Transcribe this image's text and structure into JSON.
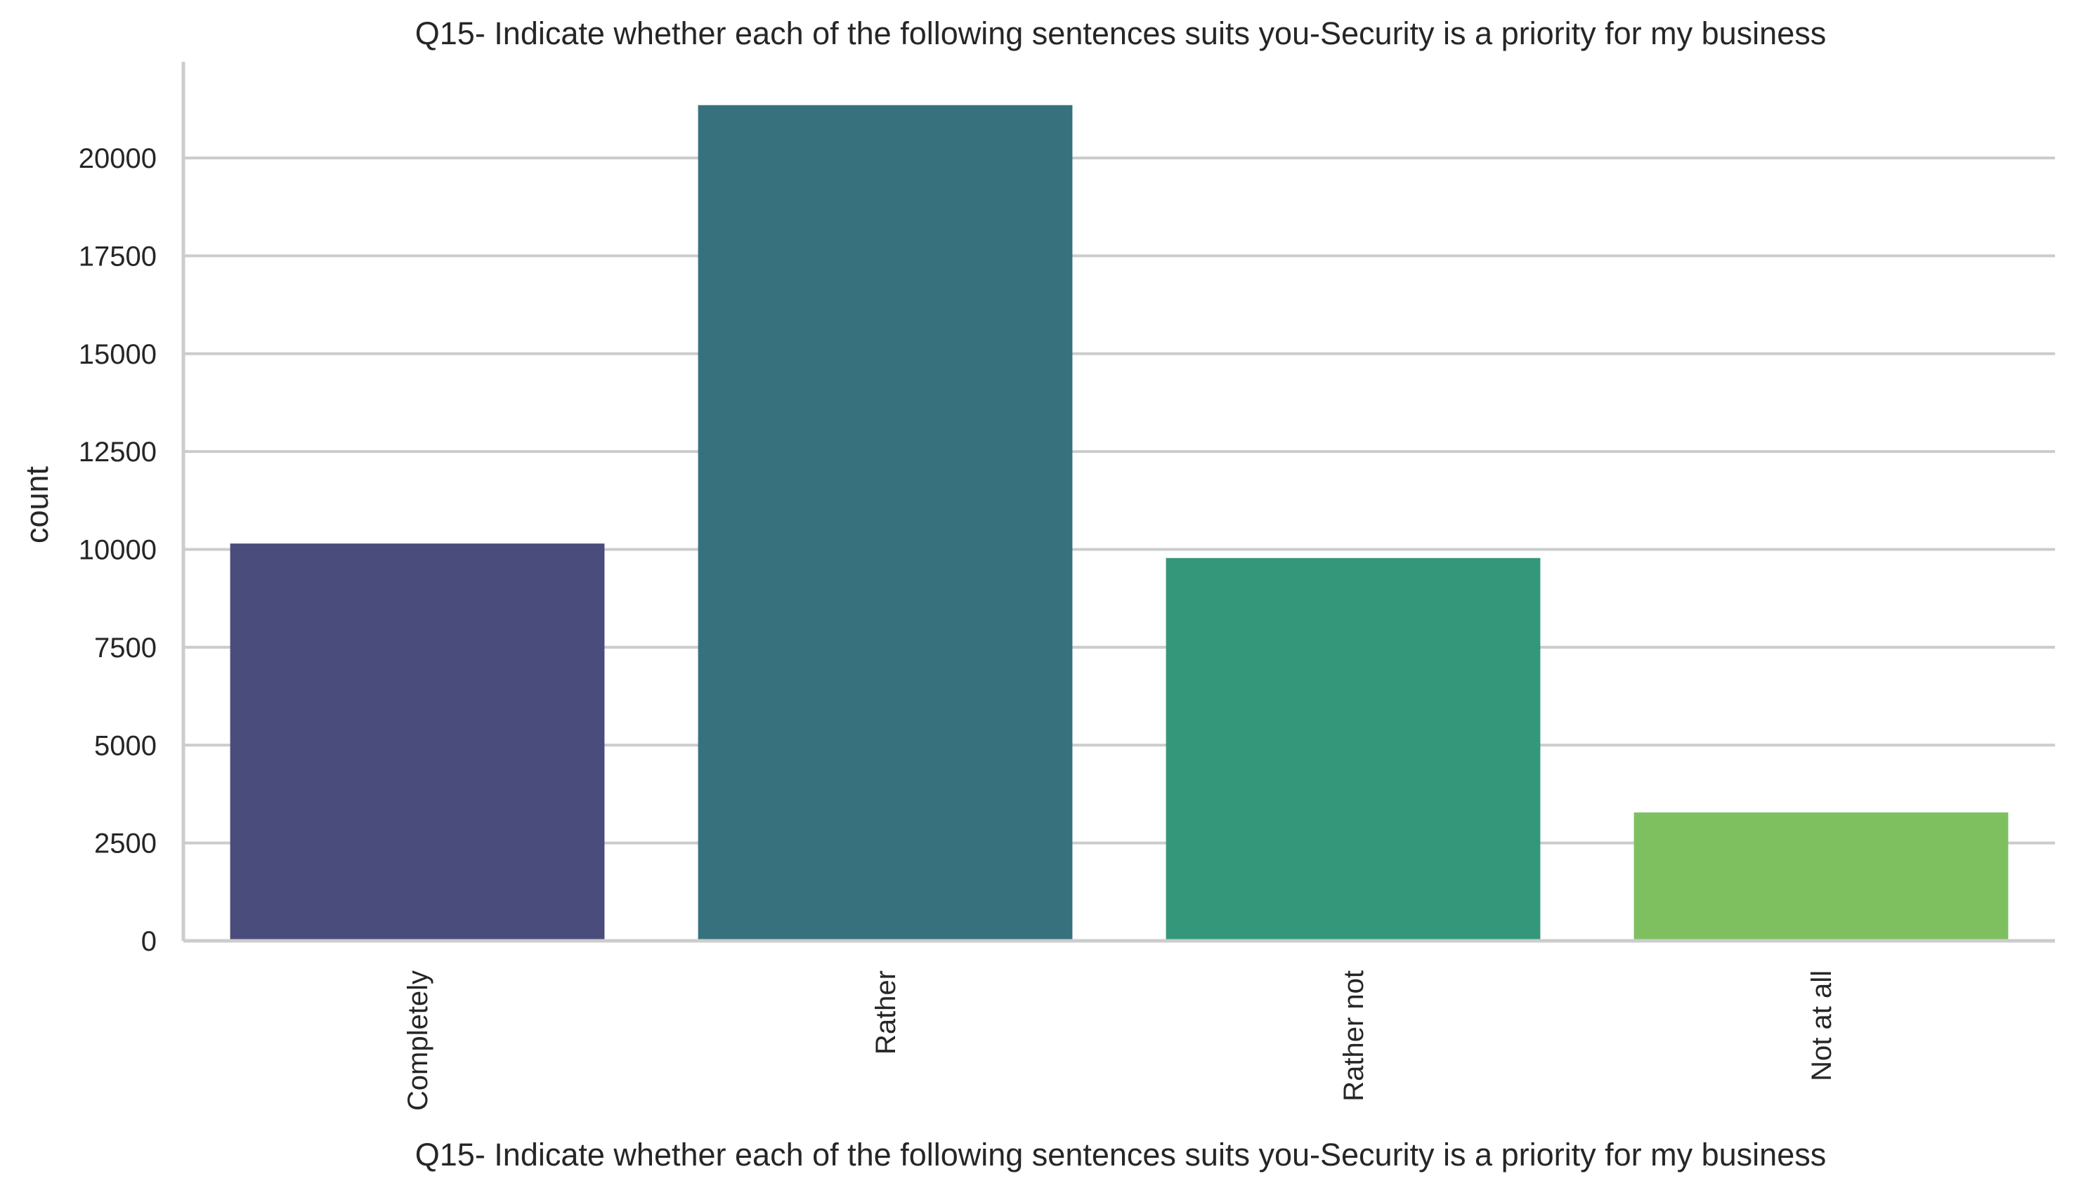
{
  "chart_data": {
    "type": "bar",
    "title": "Q15- Indicate whether each of the following sentences suits you-Security is a priority for my business",
    "xlabel": "Q15- Indicate whether each of the following sentences suits you-Security is a priority for my business",
    "ylabel": "count",
    "categories": [
      "Completely",
      "Rather",
      "Rather not",
      "Not at all"
    ],
    "values": [
      10150,
      21350,
      9780,
      3280
    ],
    "colors": [
      "#4a4c7c",
      "#37717e",
      "#35977a",
      "#7ec060"
    ],
    "ylim": [
      0,
      22000
    ],
    "yticks": [
      0,
      2500,
      5000,
      7500,
      10000,
      12500,
      15000,
      17500,
      20000
    ],
    "ytick_labels": [
      "0",
      "2500",
      "5000",
      "7500",
      "10000",
      "12500",
      "15000",
      "17500",
      "20000"
    ],
    "grid": "horizontal",
    "xtick_rotation": "vertical",
    "spine_color": "#cccccc",
    "grid_color": "#cccccc",
    "text_color": "#262626"
  }
}
